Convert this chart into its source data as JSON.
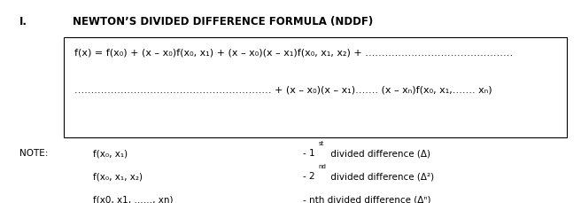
{
  "title_roman": "I.",
  "title_text": "NEWTON’S DIVIDED DIFFERENCE FORMULA (NDDF)",
  "box_line1": "f(x) = f(x₀) + (x – x₀)f(x₀, x₁) + (x – x₀)(x – x₁)f(x₀, x₁, x₂) + ………………………………………",
  "box_line2": "…………………………………………………… + (x – x₀)(x – x₁)……. (x – xₙ)f(x₀, x₁,……. xₙ)",
  "note_label": "NOTE:",
  "note_row1_left": "f(x₀, x₁)",
  "note_row2_left": "f(x₀, x₁, x₂)",
  "note_row3_left": "f(x0, x1, ……, xn)",
  "note_row1_right": "- 1",
  "note_row1_super": "st",
  "note_row1_rest": " divided difference (Δ)",
  "note_row2_right": "- 2",
  "note_row2_super": "nd",
  "note_row2_rest": " divided difference (Δ²)",
  "note_row3_right": "- nth divided difference (Δⁿ)",
  "bg_color": "#ffffff",
  "text_color": "#000000",
  "box_bg": "#ffffff",
  "box_edge": "#000000",
  "title_fontsize": 8.5,
  "body_fontsize": 8.0,
  "note_fontsize": 7.5
}
